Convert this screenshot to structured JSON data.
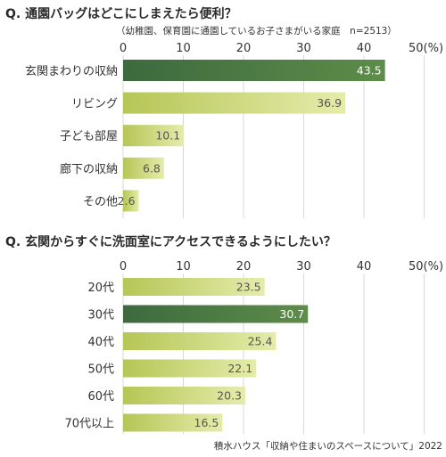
{
  "source": "積水ハウス「収納や住まいのスペースについて」2022",
  "colors": {
    "highlight_start": "#3d6a3e",
    "highlight_end": "#5e8c4a",
    "bar_start": "#b6c656",
    "bar_end": "#e5ecab",
    "gridline": "#d8d8d8",
    "value_dark": "#ffffff",
    "value_light": "#555555"
  },
  "chart_data": [
    {
      "type": "bar",
      "orientation": "horizontal",
      "title": "Q. 通園バッグはどこにしまえたら便利？",
      "subtitle": "（幼稚園、保育園に通園しているお子さまがいる家庭　n=2513）",
      "unit_label": "50(%)",
      "xlim": [
        0,
        50
      ],
      "ticks": [
        "0",
        "10",
        "20",
        "30",
        "40"
      ],
      "tick_values": [
        0,
        10,
        20,
        30,
        40
      ],
      "categories": [
        "玄関まわりの収納",
        "リビング",
        "子ども部屋",
        "廊下の収納",
        "その他"
      ],
      "values": [
        43.5,
        36.9,
        10.1,
        6.8,
        2.6
      ],
      "value_labels": [
        "43.5",
        "36.9",
        "10.1",
        "6.8",
        "2.6"
      ],
      "highlight_index": 0,
      "grid": true
    },
    {
      "type": "bar",
      "orientation": "horizontal",
      "title": "Q. 玄関からすぐに洗面室にアクセスできるようにしたい？",
      "subtitle": "",
      "unit_label": "50(%)",
      "xlim": [
        0,
        50
      ],
      "ticks": [
        "0",
        "10",
        "20",
        "30",
        "40"
      ],
      "tick_values": [
        0,
        10,
        20,
        30,
        40
      ],
      "categories": [
        "20代",
        "30代",
        "40代",
        "50代",
        "60代",
        "70代以上"
      ],
      "values": [
        23.5,
        30.7,
        25.4,
        22.1,
        20.3,
        16.5
      ],
      "value_labels": [
        "23.5",
        "30.7",
        "25.4",
        "22.1",
        "20.3",
        "16.5"
      ],
      "highlight_index": 1,
      "grid": true
    }
  ]
}
